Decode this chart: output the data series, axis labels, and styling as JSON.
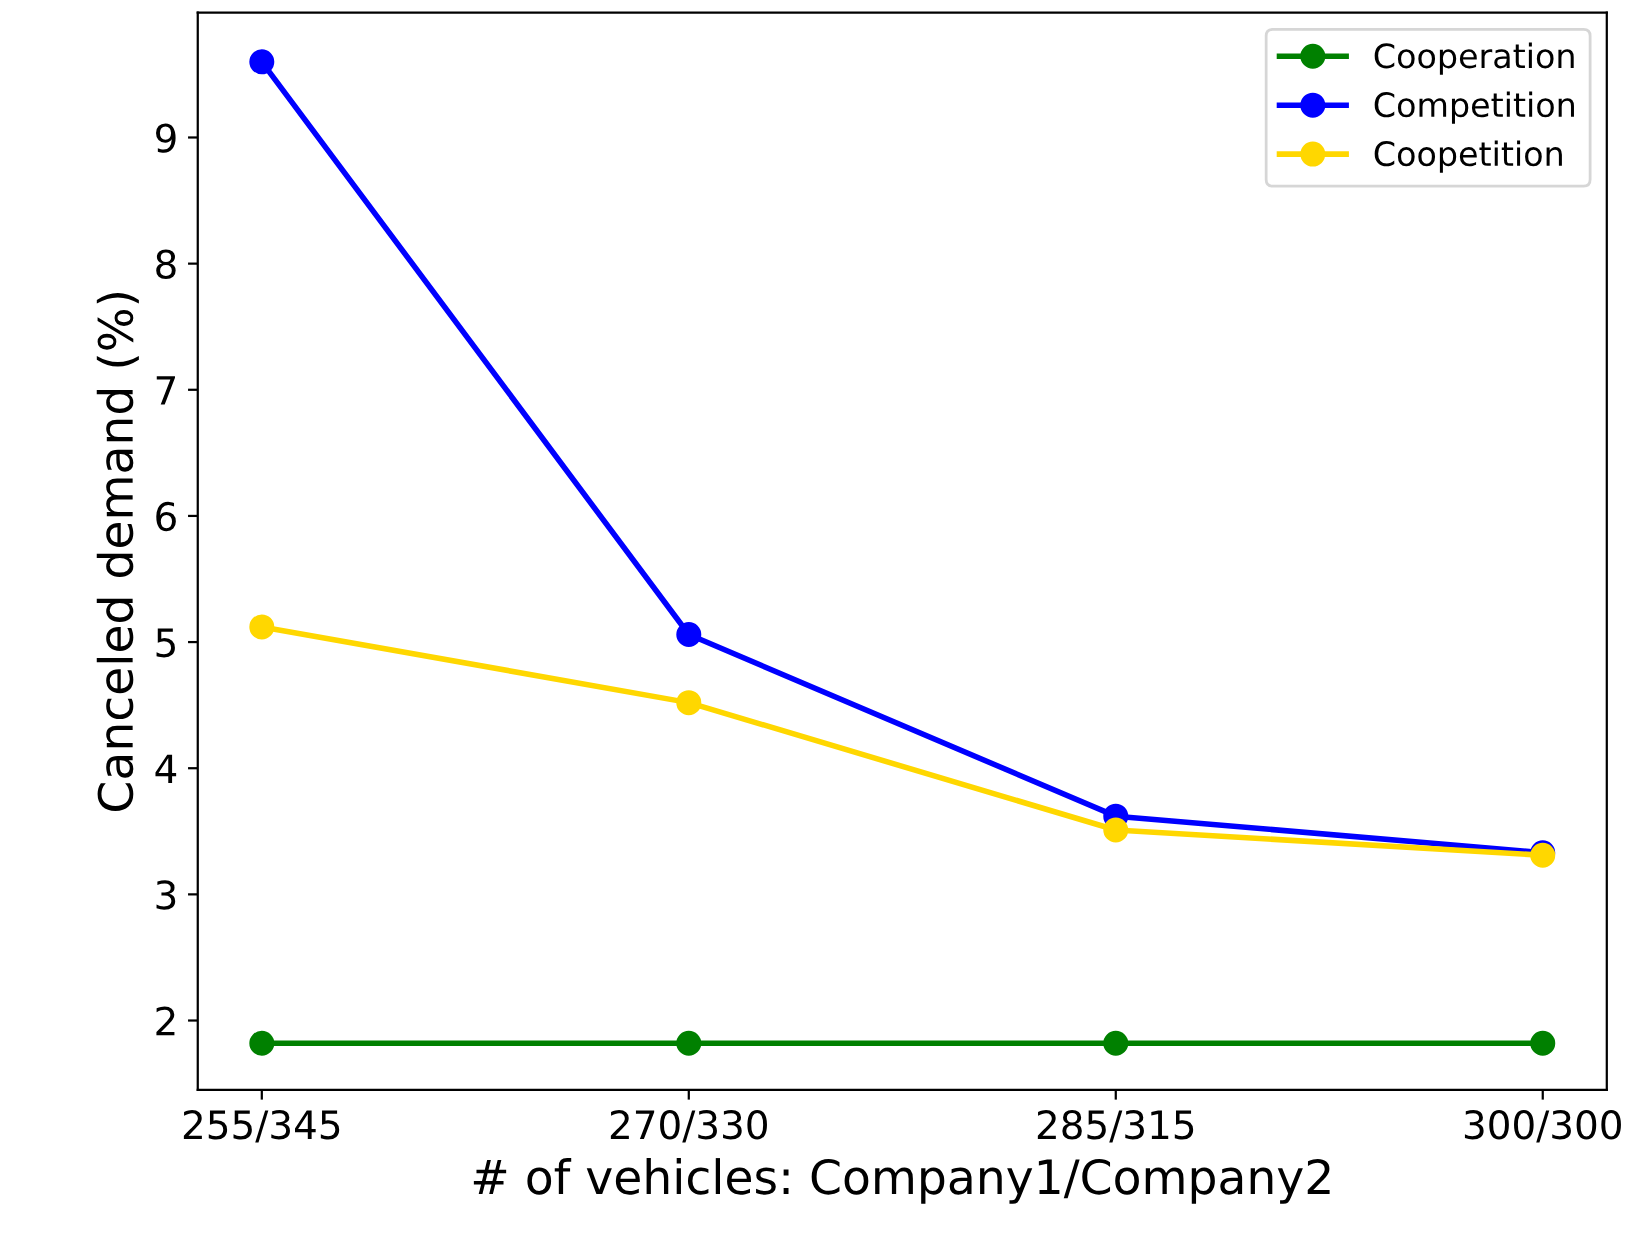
{
  "chart_data": {
    "type": "line",
    "xlabel": "# of vehicles: Company1/Company2",
    "ylabel": "Canceled demand (%)",
    "categories": [
      "255/345",
      "270/330",
      "285/315",
      "300/300"
    ],
    "series": [
      {
        "name": "Cooperation",
        "color": "#008000",
        "values": [
          1.82,
          1.82,
          1.82,
          1.82
        ]
      },
      {
        "name": "Competition",
        "color": "#0000ff",
        "values": [
          9.6,
          5.06,
          3.62,
          3.33
        ]
      },
      {
        "name": "Coopetition",
        "color": "#ffd700",
        "values": [
          5.12,
          4.52,
          3.51,
          3.31
        ]
      }
    ],
    "ylim": [
      1.45,
      9.99
    ],
    "yticks": [
      2,
      3,
      4,
      5,
      6,
      7,
      8,
      9
    ],
    "grid": false,
    "legend": "top right",
    "marker": "circle",
    "line_style": "solid"
  }
}
